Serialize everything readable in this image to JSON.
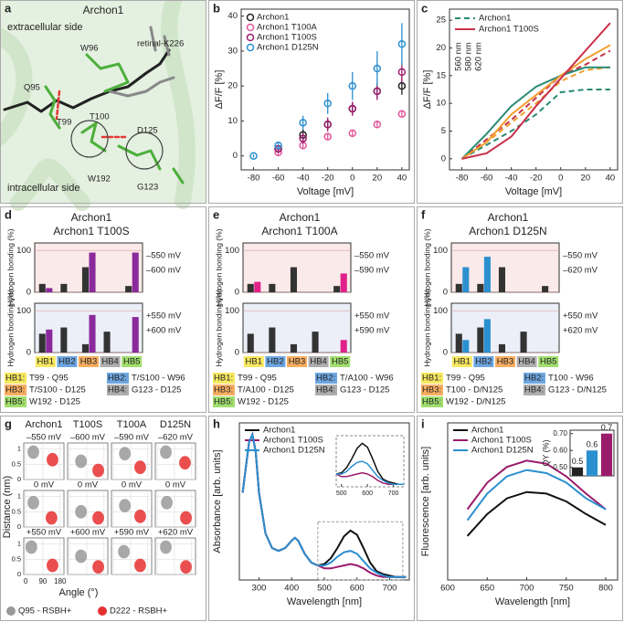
{
  "chart_data": [
    {
      "type": "structure",
      "label": "a",
      "title": "Archon1",
      "labels": [
        "extracellular side",
        "W96",
        "retinal-K226",
        "Q95",
        "T99",
        "T100",
        "D125",
        "W192",
        "G123",
        "intracellular side"
      ]
    },
    {
      "type": "errorscatter",
      "label": "b",
      "xlabel": "Voltage [mV]",
      "ylabel": "ΔF/F [%]",
      "x": [
        -80,
        -60,
        -40,
        -20,
        0,
        20,
        40
      ],
      "xlim": [
        -90,
        46
      ],
      "xticks": [
        -80,
        -60,
        -40,
        -20,
        0,
        20,
        40
      ],
      "ylim": [
        -4,
        42
      ],
      "yticks": [
        0,
        10,
        20,
        30,
        40
      ],
      "series": [
        {
          "name": "Archon1",
          "color": "#222222",
          "values": [
            null,
            2,
            6,
            9,
            13.5,
            18.5,
            20
          ],
          "errors": [
            null,
            1,
            1.5,
            1.5,
            1.8,
            2,
            2.5
          ]
        },
        {
          "name": "Archon1 T100A",
          "color": "#e0569a",
          "values": [
            null,
            1,
            3,
            5.5,
            6.5,
            9,
            12
          ],
          "errors": [
            null,
            0.8,
            1,
            1,
            1,
            1,
            1
          ]
        },
        {
          "name": "Archon1 T100S",
          "color": "#9b1b6b",
          "values": [
            null,
            2,
            5,
            9,
            13.5,
            18.5,
            24
          ],
          "errors": [
            null,
            1,
            1.5,
            2,
            2,
            2.5,
            3
          ]
        },
        {
          "name": "Archon1 D125N",
          "color": "#2b8fd0",
          "values": [
            0,
            3,
            9.5,
            15,
            20,
            25,
            32
          ],
          "errors": [
            0.5,
            1,
            2,
            3,
            4,
            5,
            6
          ]
        }
      ]
    },
    {
      "type": "multiline",
      "label": "c",
      "xlabel": "Voltage [mV]",
      "ylabel": "ΔF/F [%]",
      "x": [
        -80,
        -60,
        -40,
        -20,
        0,
        20,
        40
      ],
      "xlim": [
        -90,
        46
      ],
      "xticks": [
        -80,
        -60,
        -40,
        -20,
        0,
        20,
        40
      ],
      "ylim": [
        -2,
        27
      ],
      "yticks": [
        0,
        5,
        10,
        15,
        20,
        25
      ],
      "wavelengths": [
        "560 nm",
        "580 nm",
        "620 nm"
      ],
      "colors": [
        "#2a8a74",
        "#f0a030",
        "#c8304a"
      ],
      "series": [
        {
          "name": "Archon1",
          "dashed": true,
          "values": [
            [
              0,
              2.5,
              5,
              8,
              12,
              12.5,
              12.5
            ],
            [
              0,
              3,
              6.5,
              10,
              14,
              16,
              16.5
            ],
            [
              0,
              3.5,
              7,
              11,
              15,
              17,
              19.5
            ]
          ]
        },
        {
          "name": "Archon1 T100S",
          "dashed": false,
          "values": [
            [
              0,
              4.5,
              9.5,
              13,
              15,
              16.5,
              16.5
            ],
            [
              0,
              3,
              8,
              11.5,
              15,
              18,
              20.5
            ],
            [
              0,
              1,
              4,
              9.5,
              14.5,
              19.5,
              24.5
            ]
          ]
        }
      ]
    },
    {
      "type": "hbond",
      "label": "d",
      "title": "Archon1",
      "subtitle": "Archon1 T100S",
      "color": "#8b2a9b",
      "archon_color": "#333333",
      "ylabel": "Hydrogen bonding (%)",
      "categories": [
        "HB1",
        "HB2",
        "HB3",
        "HB4",
        "HB5"
      ],
      "category_colors": [
        "#f5e23a",
        "#4a90d9",
        "#f59a3a",
        "#9a9a9a",
        "#8ad64a"
      ],
      "ylim": [
        0,
        118
      ],
      "yticks": [
        0,
        100
      ],
      "panels": [
        {
          "archon_label": "–550 mV",
          "mutant_label": "–600 mV",
          "archon": [
            20,
            20,
            60,
            0,
            15
          ],
          "mutant": [
            10,
            0,
            95,
            0,
            95
          ]
        },
        {
          "archon_label": "+550 mV",
          "mutant_label": "+600 mV",
          "archon": [
            45,
            60,
            20,
            50,
            0
          ],
          "mutant": [
            55,
            0,
            90,
            0,
            85
          ]
        }
      ],
      "legend": [
        {
          "key": "HB1:",
          "text": "T99 - Q95"
        },
        {
          "key": "HB2:",
          "text": "T/S100 - W96"
        },
        {
          "key": "HB3:",
          "text": "T/S100 - D125"
        },
        {
          "key": "HB4:",
          "text": "G123 - D125"
        },
        {
          "key": "HB5:",
          "text": "W192 - D125"
        }
      ]
    },
    {
      "type": "hbond",
      "label": "e",
      "title": "Archon1",
      "subtitle": "Archon1 T100A",
      "color": "#e0218a",
      "archon_color": "#333333",
      "ylabel": "Hydrogen bonding (%)",
      "categories": [
        "HB1",
        "HB2",
        "HB3",
        "HB4",
        "HB5"
      ],
      "category_colors": [
        "#f5e23a",
        "#4a90d9",
        "#f59a3a",
        "#9a9a9a",
        "#8ad64a"
      ],
      "ylim": [
        0,
        118
      ],
      "yticks": [
        0,
        100
      ],
      "panels": [
        {
          "archon_label": "–550 mV",
          "mutant_label": "–590 mV",
          "archon": [
            20,
            20,
            60,
            0,
            15
          ],
          "mutant": [
            25,
            0,
            0,
            0,
            45
          ]
        },
        {
          "archon_label": "+550 mV",
          "mutant_label": "+590 mV",
          "archon": [
            45,
            60,
            20,
            50,
            0
          ],
          "mutant": [
            0,
            0,
            0,
            0,
            30
          ]
        }
      ],
      "legend": [
        {
          "key": "HB1:",
          "text": "T99 - Q95"
        },
        {
          "key": "HB2:",
          "text": "T/A100 - W96"
        },
        {
          "key": "HB3:",
          "text": "T/A100 - D125"
        },
        {
          "key": "HB4:",
          "text": "G123 - D125"
        },
        {
          "key": "HB5:",
          "text": "W192 - D125"
        }
      ]
    },
    {
      "type": "hbond",
      "label": "f",
      "title": "Archon1",
      "subtitle": "Archon1 D125N",
      "color": "#2b8fd0",
      "archon_color": "#333333",
      "ylabel": "Hydrogen bonding (%)",
      "categories": [
        "HB1",
        "HB2",
        "HB3",
        "HB4",
        "HB5"
      ],
      "category_colors": [
        "#f5e23a",
        "#4a90d9",
        "#f59a3a",
        "#9a9a9a",
        "#8ad64a"
      ],
      "ylim": [
        0,
        118
      ],
      "yticks": [
        0,
        100
      ],
      "panels": [
        {
          "archon_label": "–550 mV",
          "mutant_label": "–620 mV",
          "archon": [
            20,
            20,
            60,
            0,
            15
          ],
          "mutant": [
            60,
            85,
            0,
            0,
            0
          ]
        },
        {
          "archon_label": "+550 mV",
          "mutant_label": "+620 mV",
          "archon": [
            45,
            60,
            20,
            50,
            0
          ],
          "mutant": [
            30,
            80,
            0,
            0,
            0
          ]
        }
      ],
      "legend": [
        {
          "key": "HB1:",
          "text": "T99 - Q95"
        },
        {
          "key": "HB2:",
          "text": "T100 - W96"
        },
        {
          "key": "HB3:",
          "text": "T100 - D/N125"
        },
        {
          "key": "HB4:",
          "text": "G123 - D/N125"
        },
        {
          "key": "HB5:",
          "text": "W192 - D/N125"
        }
      ]
    },
    {
      "type": "density",
      "label": "g",
      "columns": [
        "Archon1",
        "T100S",
        "T100A",
        "D125N"
      ],
      "conditions": [
        [
          "–550 mV",
          "–600 mV",
          "–590 mV",
          "–620 mV"
        ],
        [
          "0 mV",
          "0 mV",
          "0 mV",
          "0 mV"
        ],
        [
          "+550 mV",
          "+600 mV",
          "+590 mV",
          "+620 mV"
        ]
      ],
      "xlabel": "Angle (°)",
      "ylabel": "Distance (nm)",
      "xlim": [
        -10,
        200
      ],
      "xticks": [
        0,
        90,
        180
      ],
      "ylim": [
        0,
        1.2
      ],
      "yticks": [
        0,
        0.5,
        1
      ],
      "series": [
        {
          "name": "Q95 - RSBH+",
          "color": "#999999",
          "angle": [
            [
              40,
              60,
              60,
              45
            ],
            [
              40,
              60,
              60,
              50
            ],
            [
              30,
              60,
              55,
              45
            ]
          ],
          "distance": [
            [
              0.9,
              0.6,
              0.85,
              0.9
            ],
            [
              0.8,
              0.5,
              0.7,
              0.8
            ],
            [
              0.9,
              0.6,
              0.75,
              0.9
            ]
          ]
        },
        {
          "name": "D222 - RSBH+",
          "color": "#e83030",
          "angle": [
            [
              140,
              150,
              140,
              145
            ],
            [
              135,
              150,
              140,
              150
            ],
            [
              140,
              150,
              140,
              150
            ]
          ],
          "distance": [
            [
              0.65,
              0.3,
              0.4,
              0.55
            ],
            [
              0.3,
              0.3,
              0.35,
              0.3
            ],
            [
              0.3,
              0.25,
              0.3,
              0.25
            ]
          ]
        }
      ]
    },
    {
      "type": "line",
      "label": "h",
      "xlabel": "Wavelength [nm]",
      "ylabel": "Absorbance [arb. units]",
      "x": [
        250,
        260,
        270,
        280,
        290,
        300,
        320,
        340,
        360,
        380,
        400,
        410,
        420,
        440,
        460,
        480,
        500,
        520,
        540,
        560,
        580,
        600,
        620,
        640,
        660,
        680,
        700,
        720,
        750
      ],
      "xlim": [
        240,
        760
      ],
      "xticks": [
        300,
        400,
        500,
        600,
        700
      ],
      "ylim": [
        0,
        1.08
      ],
      "series": [
        {
          "name": "Archon1",
          "color": "#111111",
          "values": [
            0.6,
            0.78,
            0.95,
            1.0,
            0.88,
            0.6,
            0.32,
            0.22,
            0.2,
            0.22,
            0.27,
            0.29,
            0.27,
            0.18,
            0.12,
            0.1,
            0.11,
            0.15,
            0.22,
            0.3,
            0.34,
            0.31,
            0.22,
            0.12,
            0.06,
            0.04,
            0.03,
            0.02,
            0.02
          ]
        },
        {
          "name": "Archon1 T100S",
          "color": "#9b1b6b",
          "values": [
            0.6,
            0.78,
            0.95,
            1.0,
            0.88,
            0.6,
            0.32,
            0.22,
            0.2,
            0.22,
            0.27,
            0.29,
            0.27,
            0.18,
            0.12,
            0.1,
            0.08,
            0.08,
            0.09,
            0.1,
            0.11,
            0.1,
            0.08,
            0.05,
            0.03,
            0.02,
            0.02,
            0.02,
            0.02
          ]
        },
        {
          "name": "Archon1 D125N",
          "color": "#2b8fd0",
          "values": [
            0.6,
            0.78,
            0.95,
            1.0,
            0.88,
            0.6,
            0.32,
            0.22,
            0.2,
            0.22,
            0.27,
            0.29,
            0.27,
            0.18,
            0.12,
            0.1,
            0.1,
            0.12,
            0.16,
            0.19,
            0.2,
            0.18,
            0.13,
            0.08,
            0.05,
            0.03,
            0.02,
            0.02,
            0.02
          ]
        }
      ],
      "inset": {
        "xlim": [
          480,
          740
        ],
        "ylim": [
          0,
          0.4
        ],
        "xticks": [
          500,
          600,
          700
        ]
      }
    },
    {
      "type": "line",
      "label": "i",
      "xlabel": "Wavelength [nm]",
      "ylabel": "Fluorescence [arb. units]",
      "x": [
        625,
        650,
        675,
        700,
        725,
        750,
        775,
        800
      ],
      "xlim": [
        600,
        815
      ],
      "xticks": [
        600,
        650,
        700,
        750,
        800
      ],
      "ylim": [
        0,
        1
      ],
      "series": [
        {
          "name": "Archon1",
          "color": "#111111",
          "values": [
            0.28,
            0.42,
            0.52,
            0.56,
            0.55,
            0.5,
            0.42,
            0.35
          ]
        },
        {
          "name": "Archon1 T100S",
          "color": "#9b1b6b",
          "values": [
            0.45,
            0.62,
            0.72,
            0.76,
            0.74,
            0.66,
            0.55,
            0.45
          ]
        },
        {
          "name": "Archon1 D125N",
          "color": "#2b8fd0",
          "values": [
            0.38,
            0.55,
            0.66,
            0.7,
            0.68,
            0.62,
            0.52,
            0.45
          ]
        }
      ],
      "inset": {
        "type": "bar",
        "ylabel": "QY (%)",
        "values": [
          0.5,
          0.6,
          0.7
        ],
        "colors": [
          "#222222",
          "#2b8fd0",
          "#9b1b6b"
        ],
        "ylim": [
          0.45,
          0.72
        ],
        "yticks": [
          {
            "value": 0.5,
            "label": "0.50"
          },
          {
            "value": 0.6,
            "label": "0.60"
          },
          {
            "value": 0.7,
            "label": "0.70"
          }
        ]
      }
    }
  ]
}
